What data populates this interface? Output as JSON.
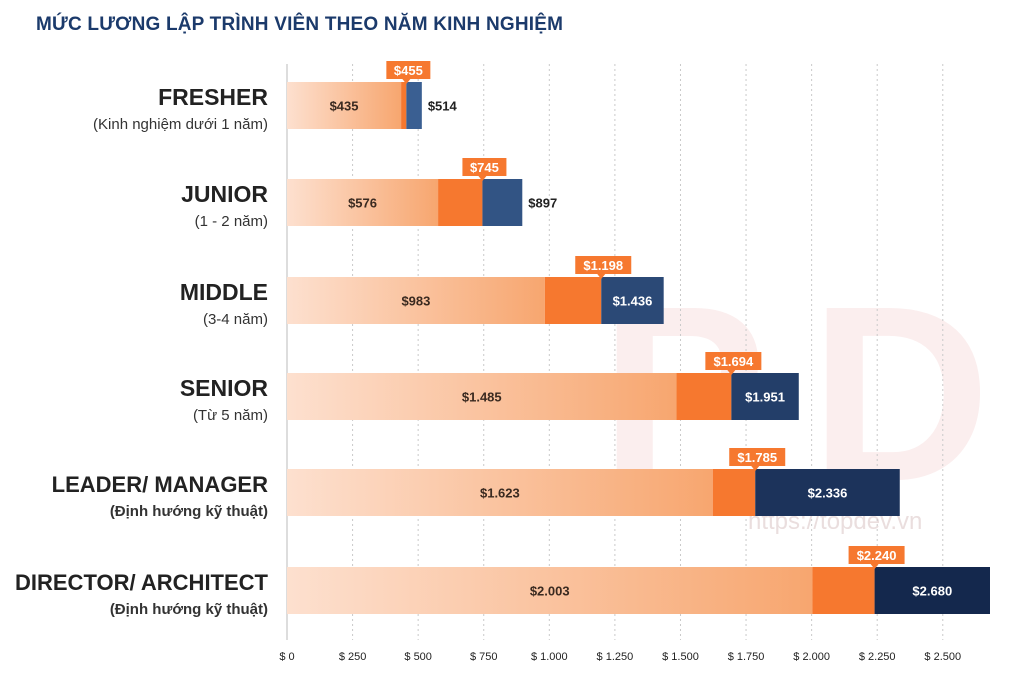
{
  "title": "MỨC LƯƠNG LẬP TRÌNH VIÊN THEO NĂM KINH NGHIỆM",
  "watermark": "https://topdev.vn",
  "colors": {
    "low_start": "#fde0cf",
    "low_end": "#f7a66f",
    "mid": "#f6782f",
    "high_light": "#3a5f92",
    "high_dark": "#14284d",
    "label_box": "#f6782f",
    "title": "#1b3a6b"
  },
  "chart_data": {
    "type": "bar",
    "orientation": "horizontal",
    "stacked_ranges": true,
    "title": "MỨC LƯƠNG LẬP TRÌNH VIÊN THEO NĂM KINH NGHIỆM",
    "xlim": [
      0,
      2680
    ],
    "grid": "vertical dashed",
    "categories": [
      {
        "name": "FRESHER",
        "sub": "(Kinh nghiệm dưới 1 năm)",
        "sub_bold": false
      },
      {
        "name": "JUNIOR",
        "sub": "(1 - 2 năm)",
        "sub_bold": false
      },
      {
        "name": "MIDDLE",
        "sub": "(3-4 năm)",
        "sub_bold": false
      },
      {
        "name": "SENIOR",
        "sub": "(Từ 5 năm)",
        "sub_bold": false
      },
      {
        "name": "LEADER/ MANAGER",
        "sub": "(Định hướng kỹ thuật)",
        "sub_bold": true
      },
      {
        "name": "DIRECTOR/ ARCHITECT",
        "sub": "(Định hướng kỹ thuật)",
        "sub_bold": true
      }
    ],
    "series": [
      {
        "values": [
          435,
          576,
          983,
          1485,
          1623,
          2003
        ],
        "labels": [
          "$435",
          "$576",
          "$983",
          "$1.485",
          "$1.623",
          "$2.003"
        ]
      },
      {
        "values": [
          455,
          745,
          1198,
          1694,
          1785,
          2240
        ],
        "labels": [
          "$455",
          "$745",
          "$1.198",
          "$1.694",
          "$1.785",
          "$2.240"
        ]
      },
      {
        "values": [
          514,
          897,
          1436,
          1951,
          2336,
          2680
        ],
        "labels": [
          "$514",
          "$897",
          "$1.436",
          "$1.951",
          "$2.336",
          "$2.680"
        ]
      }
    ],
    "x_ticks": [
      {
        "value": 0,
        "label": "$ 0"
      },
      {
        "value": 250,
        "label": "$ 250"
      },
      {
        "value": 500,
        "label": "$ 500"
      },
      {
        "value": 750,
        "label": "$ 750"
      },
      {
        "value": 1000,
        "label": "$ 1.000"
      },
      {
        "value": 1250,
        "label": "$ 1.250"
      },
      {
        "value": 1500,
        "label": "$ 1.500"
      },
      {
        "value": 1750,
        "label": "$ 1.750"
      },
      {
        "value": 2000,
        "label": "$ 2.000"
      },
      {
        "value": 2250,
        "label": "$ 2.250"
      },
      {
        "value": 2500,
        "label": "$ 2.500"
      }
    ]
  }
}
